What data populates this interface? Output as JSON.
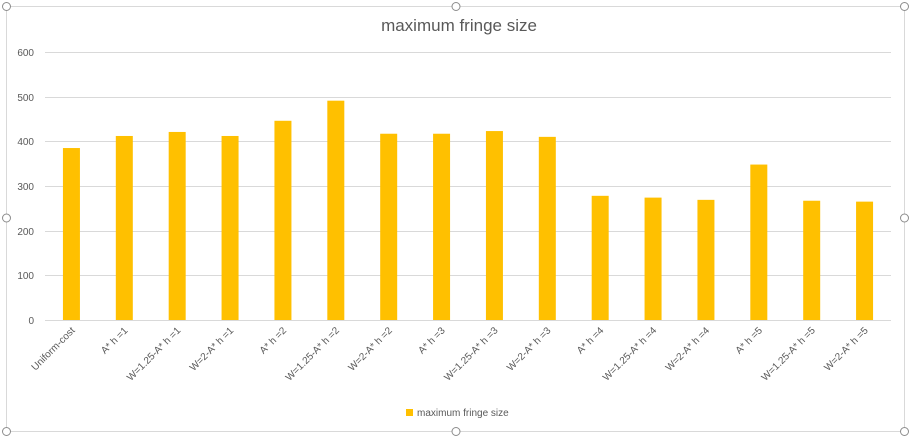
{
  "chart_data": {
    "type": "bar",
    "title": "maximum fringe size",
    "xlabel": "",
    "ylabel": "",
    "ylim": [
      0,
      600
    ],
    "yticks": [
      0,
      100,
      200,
      300,
      400,
      500,
      600
    ],
    "grid": true,
    "legend_position": "bottom",
    "categories": [
      "Uniform-cost",
      "A* h =1",
      "W=1.25-A* h =1",
      "W=2-A* h =1",
      "A* h =2",
      "W=1.25-A* h =2",
      "W=2-A* h =2",
      "A* h =3",
      "W=1.25-A* h =3",
      "W=2-A* h =3",
      "A* h =4",
      "W=1.25-A* h =4",
      "W=2-A* h =4",
      "A* h =5",
      "W=1.25-A* h =5",
      "W=2-A* h =5"
    ],
    "series": [
      {
        "name": "maximum fringe size",
        "color": "#ffc000",
        "values": [
          385,
          412,
          421,
          412,
          446,
          491,
          417,
          417,
          423,
          410,
          278,
          274,
          269,
          348,
          267,
          265
        ]
      }
    ]
  }
}
